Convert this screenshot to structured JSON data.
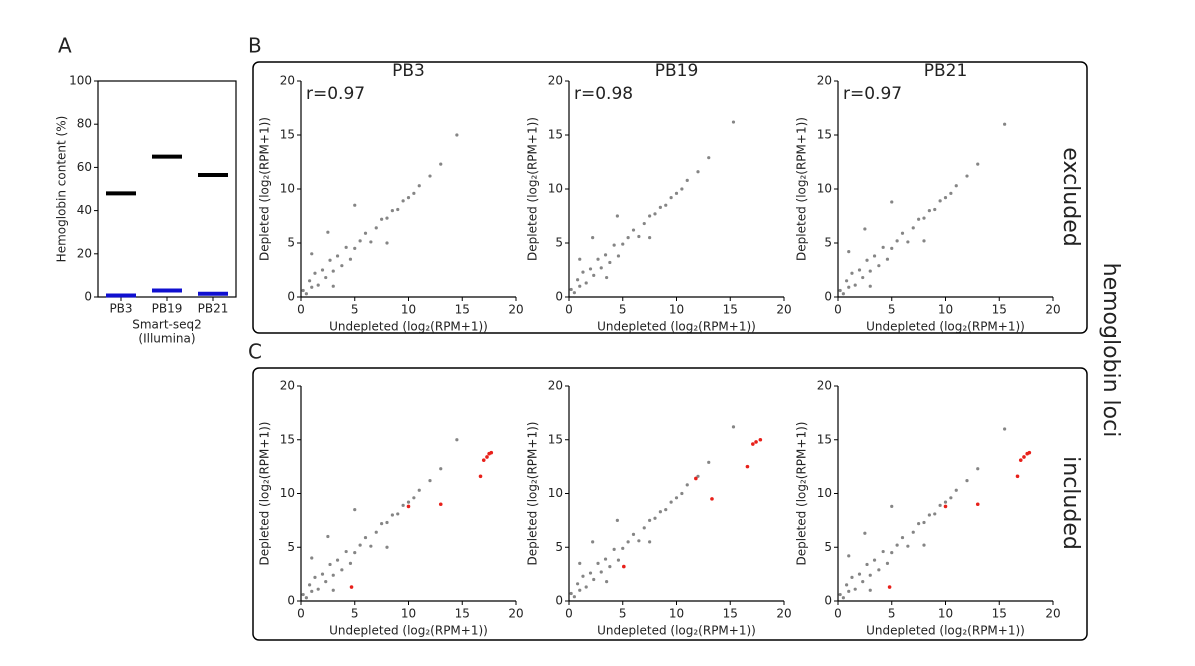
{
  "figure": {
    "letters": [
      "A",
      "B",
      "C"
    ],
    "row_labels": [
      "excluded",
      "included"
    ],
    "side_label": "hemoglobin loci"
  },
  "chart_data": [
    {
      "type": "bar",
      "ylabel": "Hemoglobin content (%)",
      "xlabel": [
        "Smart-seq2",
        "(Illumina)"
      ],
      "categories": [
        "PB3",
        "PB19",
        "PB21"
      ],
      "ylim": [
        0,
        100
      ],
      "yticks": [
        0,
        20,
        40,
        60,
        80,
        100
      ],
      "series": [
        {
          "color": "#000000",
          "values": [
            48,
            65,
            56.5
          ]
        },
        {
          "color": "#1010d0",
          "values": [
            0.7,
            3,
            1.5
          ]
        }
      ]
    },
    {
      "type": "scatter",
      "title": "PB3",
      "annotation": "r=0.97",
      "xlabel": "Undepleted (log₂(RPM+1))",
      "ylabel": "Depleted (log₂(RPM+1))",
      "xlim": [
        0,
        20
      ],
      "ylim": [
        0,
        20
      ],
      "xticks": [
        0,
        5,
        10,
        15,
        20
      ],
      "yticks": [
        0,
        5,
        10,
        15,
        20
      ],
      "series": [
        {
          "color": "#333333",
          "x": [
            0.2,
            0.5,
            0.8,
            1,
            1.3,
            1.6,
            2,
            2.3,
            2.7,
            3,
            3.4,
            3.8,
            4.2,
            4.6,
            5,
            5.5,
            6,
            6.5,
            7,
            7.5,
            8,
            8.5,
            9,
            9.5,
            10,
            10.5,
            11,
            12,
            13,
            14.5,
            1,
            2.5,
            5,
            8,
            3
          ],
          "y": [
            0.6,
            0.3,
            1.5,
            0.9,
            2.2,
            1.1,
            2.5,
            1.8,
            3.4,
            2.4,
            3.8,
            2.9,
            4.6,
            3.5,
            4.5,
            5.2,
            5.9,
            5.1,
            6.4,
            7.2,
            7.3,
            8,
            8.1,
            8.9,
            9.2,
            9.6,
            10.3,
            11.2,
            12.3,
            15,
            4,
            6,
            8.5,
            5,
            1
          ]
        }
      ]
    },
    {
      "type": "scatter",
      "title": "PB19",
      "annotation": "r=0.98",
      "xlabel": "Undepleted (log₂(RPM+1))",
      "ylabel": "Depleted (log₂(RPM+1))",
      "xlim": [
        0,
        20
      ],
      "ylim": [
        0,
        20
      ],
      "xticks": [
        0,
        5,
        10,
        15,
        20
      ],
      "yticks": [
        0,
        5,
        10,
        15,
        20
      ],
      "series": [
        {
          "color": "#333333",
          "x": [
            0.2,
            0.5,
            0.8,
            1,
            1.3,
            1.6,
            2,
            2.3,
            2.7,
            3,
            3.4,
            3.8,
            4.2,
            4.6,
            5,
            5.5,
            6,
            6.5,
            7,
            7.5,
            8,
            8.5,
            9,
            9.5,
            10,
            10.5,
            11,
            12,
            13,
            15.3,
            1,
            2.2,
            4.5,
            7.5,
            3.5
          ],
          "y": [
            0.7,
            0.4,
            1.6,
            1,
            2.3,
            1.3,
            2.6,
            2,
            3.5,
            2.7,
            3.9,
            3.2,
            4.8,
            3.8,
            4.9,
            5.5,
            6.2,
            5.6,
            6.8,
            7.5,
            7.7,
            8.3,
            8.5,
            9.2,
            9.6,
            10,
            10.8,
            11.6,
            12.9,
            16.2,
            3.5,
            5.5,
            7.5,
            5.5,
            1.8
          ]
        }
      ]
    },
    {
      "type": "scatter",
      "title": "PB21",
      "annotation": "r=0.97",
      "xlabel": "Undepleted (log₂(RPM+1))",
      "ylabel": "Depleted (log₂(RPM+1))",
      "xlim": [
        0,
        20
      ],
      "ylim": [
        0,
        20
      ],
      "xticks": [
        0,
        5,
        10,
        15,
        20
      ],
      "yticks": [
        0,
        5,
        10,
        15,
        20
      ],
      "series": [
        {
          "color": "#333333",
          "x": [
            0.2,
            0.5,
            0.8,
            1,
            1.3,
            1.6,
            2,
            2.3,
            2.7,
            3,
            3.4,
            3.8,
            4.2,
            4.6,
            5,
            5.5,
            6,
            6.5,
            7,
            7.5,
            8,
            8.5,
            9,
            9.5,
            10,
            10.5,
            11,
            12,
            13,
            15.5,
            1,
            2.5,
            5,
            8,
            3
          ],
          "y": [
            0.6,
            0.3,
            1.5,
            0.9,
            2.2,
            1.1,
            2.5,
            1.8,
            3.4,
            2.4,
            3.8,
            2.9,
            4.6,
            3.5,
            4.5,
            5.2,
            5.9,
            5.1,
            6.4,
            7.2,
            7.3,
            8,
            8.1,
            8.9,
            9.2,
            9.6,
            10.3,
            11.2,
            12.3,
            16,
            4.2,
            6.3,
            8.8,
            5.2,
            1
          ]
        }
      ]
    },
    {
      "type": "scatter",
      "xlabel": "Undepleted (log₂(RPM+1))",
      "ylabel": "Depleted (log₂(RPM+1))",
      "xlim": [
        0,
        20
      ],
      "ylim": [
        0,
        20
      ],
      "xticks": [
        0,
        5,
        10,
        15,
        20
      ],
      "yticks": [
        0,
        5,
        10,
        15,
        20
      ],
      "series": [
        {
          "color": "#333333",
          "x": [
            0.2,
            0.5,
            0.8,
            1,
            1.3,
            1.6,
            2,
            2.3,
            2.7,
            3,
            3.4,
            3.8,
            4.2,
            4.6,
            5,
            5.5,
            6,
            6.5,
            7,
            7.5,
            8,
            8.5,
            9,
            9.5,
            10,
            10.5,
            11,
            12,
            13,
            14.5,
            1,
            2.5,
            5,
            8,
            3
          ],
          "y": [
            0.6,
            0.3,
            1.5,
            0.9,
            2.2,
            1.1,
            2.5,
            1.8,
            3.4,
            2.4,
            3.8,
            2.9,
            4.6,
            3.5,
            4.5,
            5.2,
            5.9,
            5.1,
            6.4,
            7.2,
            7.3,
            8,
            8.1,
            8.9,
            9.2,
            9.6,
            10.3,
            11.2,
            12.3,
            15,
            4,
            6,
            8.5,
            5,
            1
          ]
        },
        {
          "color": "#e8201a",
          "x": [
            4.7,
            10,
            13,
            16.7,
            17,
            17.3,
            17.5,
            17.7
          ],
          "y": [
            1.3,
            8.8,
            9,
            11.6,
            13.1,
            13.4,
            13.7,
            13.8
          ]
        }
      ]
    },
    {
      "type": "scatter",
      "xlabel": "Undepleted (log₂(RPM+1))",
      "ylabel": "Depleted (log₂(RPM+1))",
      "xlim": [
        0,
        20
      ],
      "ylim": [
        0,
        20
      ],
      "xticks": [
        0,
        5,
        10,
        15,
        20
      ],
      "yticks": [
        0,
        5,
        10,
        15,
        20
      ],
      "series": [
        {
          "color": "#333333",
          "x": [
            0.2,
            0.5,
            0.8,
            1,
            1.3,
            1.6,
            2,
            2.3,
            2.7,
            3,
            3.4,
            3.8,
            4.2,
            4.6,
            5,
            5.5,
            6,
            6.5,
            7,
            7.5,
            8,
            8.5,
            9,
            9.5,
            10,
            10.5,
            11,
            12,
            13,
            15.3,
            1,
            2.2,
            4.5,
            7.5,
            3.5
          ],
          "y": [
            0.7,
            0.4,
            1.6,
            1,
            2.3,
            1.3,
            2.6,
            2,
            3.5,
            2.7,
            3.9,
            3.2,
            4.8,
            3.8,
            4.9,
            5.5,
            6.2,
            5.6,
            6.8,
            7.5,
            7.7,
            8.3,
            8.5,
            9.2,
            9.6,
            10,
            10.8,
            11.6,
            12.9,
            16.2,
            3.5,
            5.5,
            7.5,
            5.5,
            1.8
          ]
        },
        {
          "color": "#e8201a",
          "x": [
            5.1,
            11.8,
            13.3,
            16.6,
            17.1,
            17.4,
            17.8
          ],
          "y": [
            3.2,
            11.4,
            9.5,
            12.5,
            14.6,
            14.8,
            15
          ]
        }
      ]
    },
    {
      "type": "scatter",
      "xlabel": "Undepleted (log₂(RPM+1))",
      "ylabel": "Depleted (log₂(RPM+1))",
      "xlim": [
        0,
        20
      ],
      "ylim": [
        0,
        20
      ],
      "xticks": [
        0,
        5,
        10,
        15,
        20
      ],
      "yticks": [
        0,
        5,
        10,
        15,
        20
      ],
      "series": [
        {
          "color": "#333333",
          "x": [
            0.2,
            0.5,
            0.8,
            1,
            1.3,
            1.6,
            2,
            2.3,
            2.7,
            3,
            3.4,
            3.8,
            4.2,
            4.6,
            5,
            5.5,
            6,
            6.5,
            7,
            7.5,
            8,
            8.5,
            9,
            9.5,
            10,
            10.5,
            11,
            12,
            13,
            15.5,
            1,
            2.5,
            5,
            8,
            3
          ],
          "y": [
            0.6,
            0.3,
            1.5,
            0.9,
            2.2,
            1.1,
            2.5,
            1.8,
            3.4,
            2.4,
            3.8,
            2.9,
            4.6,
            3.5,
            4.5,
            5.2,
            5.9,
            5.1,
            6.4,
            7.2,
            7.3,
            8,
            8.1,
            8.9,
            9.2,
            9.6,
            10.3,
            11.2,
            12.3,
            16,
            4.2,
            6.3,
            8.8,
            5.2,
            1
          ]
        },
        {
          "color": "#e8201a",
          "x": [
            4.8,
            10,
            13,
            16.7,
            17,
            17.3,
            17.6,
            17.8
          ],
          "y": [
            1.3,
            8.8,
            9,
            11.6,
            13.1,
            13.4,
            13.7,
            13.8
          ]
        }
      ]
    }
  ]
}
